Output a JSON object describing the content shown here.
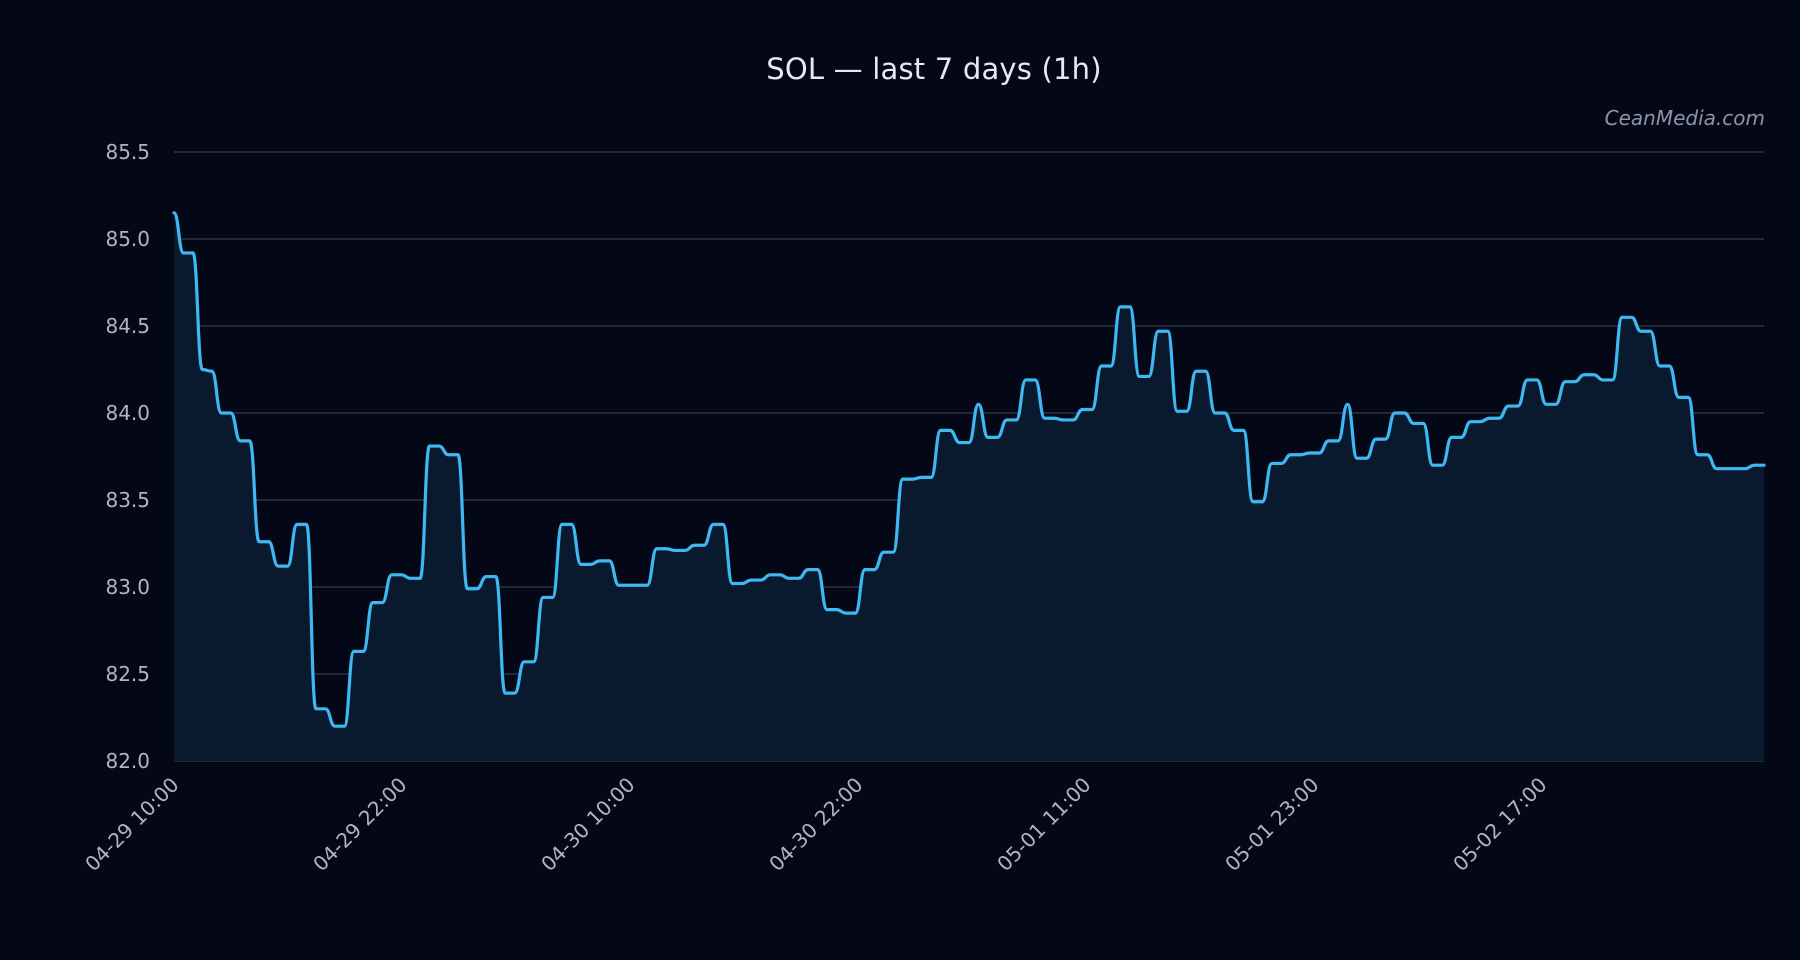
{
  "watermark": "CeanMedia.com",
  "colors": {
    "background": "#040816",
    "line": "#3db8f2",
    "area": "#0a1a2e",
    "grid": "#2a3346",
    "text": "#aeb5c4"
  },
  "chart_data": {
    "type": "line",
    "title": "SOL — last 7 days (1h)",
    "xlabel": "",
    "ylabel": "",
    "grid": true,
    "ylim": [
      82.0,
      85.5
    ],
    "yticks": [
      82.0,
      82.5,
      83.0,
      83.5,
      84.0,
      84.5,
      85.0,
      85.5
    ],
    "ytick_labels": [
      "82.0",
      "82.5",
      "83.0",
      "83.5",
      "84.0",
      "84.5",
      "85.0",
      "85.5"
    ],
    "xtick_labels": [
      "04-29 10:00",
      "04-29 22:00",
      "04-30 10:00",
      "04-30 22:00",
      "05-01 11:00",
      "05-01 23:00",
      "05-02 17:00"
    ],
    "x_start": "04-29 10:00",
    "x_interval": "1h",
    "values": [
      85.15,
      84.92,
      84.92,
      84.25,
      84.24,
      84.0,
      84.0,
      83.84,
      83.84,
      83.26,
      83.26,
      83.12,
      83.12,
      83.36,
      83.36,
      82.3,
      82.3,
      82.2,
      82.2,
      82.63,
      82.63,
      82.91,
      82.91,
      83.07,
      83.07,
      83.05,
      83.05,
      83.81,
      83.81,
      83.76,
      83.76,
      82.99,
      82.99,
      83.06,
      83.06,
      82.39,
      82.39,
      82.57,
      82.57,
      82.94,
      82.94,
      83.36,
      83.36,
      83.13,
      83.13,
      83.15,
      83.15,
      83.01,
      83.01,
      83.01,
      83.01,
      83.22,
      83.22,
      83.21,
      83.21,
      83.24,
      83.24,
      83.36,
      83.36,
      83.02,
      83.02,
      83.04,
      83.04,
      83.07,
      83.07,
      83.05,
      83.05,
      83.1,
      83.1,
      82.87,
      82.87,
      82.85,
      82.85,
      83.1,
      83.1,
      83.2,
      83.2,
      83.62,
      83.62,
      83.63,
      83.63,
      83.9,
      83.9,
      83.83,
      83.83,
      84.05,
      83.86,
      83.86,
      83.96,
      83.96,
      84.19,
      84.19,
      83.97,
      83.97,
      83.96,
      83.96,
      84.02,
      84.02,
      84.27,
      84.27,
      84.61,
      84.61,
      84.21,
      84.21,
      84.47,
      84.47,
      84.01,
      84.01,
      84.24,
      84.24,
      84.0,
      84.0,
      83.9,
      83.9,
      83.49,
      83.49,
      83.71,
      83.71,
      83.76,
      83.76,
      83.77,
      83.77,
      83.84,
      83.84,
      84.05,
      83.74,
      83.74,
      83.85,
      83.85,
      84.0,
      84.0,
      83.94,
      83.94,
      83.7,
      83.7,
      83.86,
      83.86,
      83.95,
      83.95,
      83.97,
      83.97,
      84.04,
      84.04,
      84.19,
      84.19,
      84.05,
      84.05,
      84.18,
      84.18,
      84.22,
      84.22,
      84.19,
      84.19,
      84.55,
      84.55,
      84.47,
      84.47,
      84.27,
      84.27,
      84.09,
      84.09,
      83.76,
      83.76,
      83.68,
      83.68,
      83.68,
      83.68,
      83.7,
      83.7
    ]
  }
}
